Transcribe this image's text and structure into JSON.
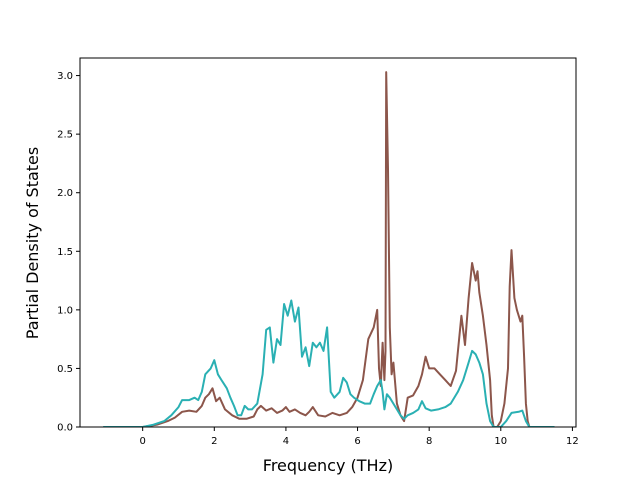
{
  "chart_data": {
    "type": "line",
    "title": "",
    "xlabel": "Frequency (THz)",
    "ylabel": "Partial Density of States",
    "xlim": [
      -1.75,
      12.1
    ],
    "ylim": [
      0,
      3.15
    ],
    "xticks": [
      0,
      2,
      4,
      6,
      8,
      10,
      12
    ],
    "xtick_labels": [
      "0",
      "2",
      "4",
      "6",
      "8",
      "10",
      "12"
    ],
    "yticks": [
      0.0,
      0.5,
      1.0,
      1.5,
      2.0,
      2.5,
      3.0
    ],
    "ytick_labels": [
      "0.0",
      "0.5",
      "1.0",
      "1.5",
      "2.0",
      "2.5",
      "3.0"
    ],
    "grid": false,
    "legend": "none",
    "series": [
      {
        "color": "#8c564b",
        "points": [
          [
            -1.1,
            0
          ],
          [
            0,
            0
          ],
          [
            0.4,
            0.02
          ],
          [
            0.7,
            0.05
          ],
          [
            0.9,
            0.08
          ],
          [
            1.1,
            0.13
          ],
          [
            1.3,
            0.14
          ],
          [
            1.5,
            0.13
          ],
          [
            1.65,
            0.18
          ],
          [
            1.75,
            0.25
          ],
          [
            1.85,
            0.28
          ],
          [
            1.95,
            0.33
          ],
          [
            2.05,
            0.22
          ],
          [
            2.15,
            0.25
          ],
          [
            2.3,
            0.15
          ],
          [
            2.5,
            0.1
          ],
          [
            2.7,
            0.07
          ],
          [
            2.9,
            0.07
          ],
          [
            3.1,
            0.09
          ],
          [
            3.2,
            0.15
          ],
          [
            3.3,
            0.18
          ],
          [
            3.45,
            0.14
          ],
          [
            3.6,
            0.16
          ],
          [
            3.75,
            0.12
          ],
          [
            3.9,
            0.14
          ],
          [
            4.0,
            0.17
          ],
          [
            4.1,
            0.13
          ],
          [
            4.25,
            0.15
          ],
          [
            4.4,
            0.12
          ],
          [
            4.55,
            0.1
          ],
          [
            4.65,
            0.13
          ],
          [
            4.75,
            0.17
          ],
          [
            4.9,
            0.1
          ],
          [
            5.1,
            0.09
          ],
          [
            5.3,
            0.12
          ],
          [
            5.5,
            0.1
          ],
          [
            5.7,
            0.12
          ],
          [
            5.85,
            0.17
          ],
          [
            6.0,
            0.25
          ],
          [
            6.15,
            0.4
          ],
          [
            6.3,
            0.75
          ],
          [
            6.45,
            0.85
          ],
          [
            6.55,
            1.0
          ],
          [
            6.6,
            0.5
          ],
          [
            6.65,
            0.35
          ],
          [
            6.7,
            0.72
          ],
          [
            6.75,
            0.4
          ],
          [
            6.78,
            0.65
          ],
          [
            6.8,
            3.03
          ],
          [
            6.85,
            2.2
          ],
          [
            6.9,
            0.85
          ],
          [
            6.95,
            0.45
          ],
          [
            7.0,
            0.55
          ],
          [
            7.1,
            0.2
          ],
          [
            7.2,
            0.1
          ],
          [
            7.3,
            0.05
          ],
          [
            7.4,
            0.25
          ],
          [
            7.55,
            0.27
          ],
          [
            7.7,
            0.35
          ],
          [
            7.8,
            0.45
          ],
          [
            7.9,
            0.6
          ],
          [
            8.0,
            0.5
          ],
          [
            8.15,
            0.5
          ],
          [
            8.3,
            0.45
          ],
          [
            8.45,
            0.4
          ],
          [
            8.6,
            0.35
          ],
          [
            8.75,
            0.48
          ],
          [
            8.9,
            0.95
          ],
          [
            9.0,
            0.7
          ],
          [
            9.1,
            1.1
          ],
          [
            9.2,
            1.4
          ],
          [
            9.3,
            1.25
          ],
          [
            9.35,
            1.33
          ],
          [
            9.4,
            1.15
          ],
          [
            9.5,
            0.95
          ],
          [
            9.6,
            0.7
          ],
          [
            9.7,
            0.4
          ],
          [
            9.75,
            0.1
          ],
          [
            9.8,
            0
          ],
          [
            9.9,
            0
          ],
          [
            10.0,
            0.05
          ],
          [
            10.1,
            0.2
          ],
          [
            10.2,
            0.5
          ],
          [
            10.25,
            1.2
          ],
          [
            10.3,
            1.51
          ],
          [
            10.38,
            1.1
          ],
          [
            10.45,
            1.0
          ],
          [
            10.55,
            0.9
          ],
          [
            10.6,
            0.95
          ],
          [
            10.65,
            0.6
          ],
          [
            10.7,
            0.2
          ],
          [
            10.75,
            0.05
          ],
          [
            10.8,
            0
          ],
          [
            11.5,
            0
          ]
        ]
      },
      {
        "color": "#2ab0b3",
        "points": [
          [
            -1.1,
            0
          ],
          [
            0,
            0
          ],
          [
            0.3,
            0.02
          ],
          [
            0.6,
            0.05
          ],
          [
            0.8,
            0.1
          ],
          [
            1.0,
            0.17
          ],
          [
            1.1,
            0.23
          ],
          [
            1.3,
            0.23
          ],
          [
            1.45,
            0.25
          ],
          [
            1.55,
            0.23
          ],
          [
            1.65,
            0.3
          ],
          [
            1.75,
            0.45
          ],
          [
            1.9,
            0.5
          ],
          [
            2.0,
            0.57
          ],
          [
            2.1,
            0.45
          ],
          [
            2.2,
            0.4
          ],
          [
            2.35,
            0.33
          ],
          [
            2.45,
            0.25
          ],
          [
            2.55,
            0.18
          ],
          [
            2.65,
            0.1
          ],
          [
            2.75,
            0.1
          ],
          [
            2.85,
            0.18
          ],
          [
            2.95,
            0.15
          ],
          [
            3.05,
            0.15
          ],
          [
            3.2,
            0.2
          ],
          [
            3.35,
            0.45
          ],
          [
            3.45,
            0.83
          ],
          [
            3.55,
            0.85
          ],
          [
            3.65,
            0.55
          ],
          [
            3.75,
            0.75
          ],
          [
            3.85,
            0.7
          ],
          [
            3.95,
            1.05
          ],
          [
            4.05,
            0.95
          ],
          [
            4.15,
            1.08
          ],
          [
            4.25,
            0.9
          ],
          [
            4.35,
            1.02
          ],
          [
            4.45,
            0.6
          ],
          [
            4.55,
            0.68
          ],
          [
            4.65,
            0.52
          ],
          [
            4.75,
            0.72
          ],
          [
            4.85,
            0.68
          ],
          [
            4.95,
            0.72
          ],
          [
            5.05,
            0.65
          ],
          [
            5.15,
            0.85
          ],
          [
            5.25,
            0.3
          ],
          [
            5.35,
            0.25
          ],
          [
            5.5,
            0.3
          ],
          [
            5.6,
            0.42
          ],
          [
            5.7,
            0.38
          ],
          [
            5.8,
            0.28
          ],
          [
            5.9,
            0.25
          ],
          [
            6.05,
            0.22
          ],
          [
            6.2,
            0.2
          ],
          [
            6.35,
            0.2
          ],
          [
            6.45,
            0.28
          ],
          [
            6.55,
            0.35
          ],
          [
            6.65,
            0.4
          ],
          [
            6.7,
            0.3
          ],
          [
            6.75,
            0.15
          ],
          [
            6.82,
            0.28
          ],
          [
            6.9,
            0.25
          ],
          [
            7.0,
            0.2
          ],
          [
            7.1,
            0.15
          ],
          [
            7.2,
            0.1
          ],
          [
            7.3,
            0.07
          ],
          [
            7.4,
            0.1
          ],
          [
            7.55,
            0.12
          ],
          [
            7.7,
            0.15
          ],
          [
            7.8,
            0.22
          ],
          [
            7.9,
            0.16
          ],
          [
            8.05,
            0.14
          ],
          [
            8.25,
            0.15
          ],
          [
            8.45,
            0.17
          ],
          [
            8.6,
            0.2
          ],
          [
            8.8,
            0.3
          ],
          [
            8.95,
            0.4
          ],
          [
            9.1,
            0.55
          ],
          [
            9.2,
            0.65
          ],
          [
            9.3,
            0.62
          ],
          [
            9.4,
            0.55
          ],
          [
            9.5,
            0.45
          ],
          [
            9.6,
            0.2
          ],
          [
            9.7,
            0.05
          ],
          [
            9.8,
            0
          ],
          [
            10.0,
            0
          ],
          [
            10.15,
            0.05
          ],
          [
            10.3,
            0.12
          ],
          [
            10.5,
            0.13
          ],
          [
            10.6,
            0.14
          ],
          [
            10.7,
            0.05
          ],
          [
            10.8,
            0
          ],
          [
            11.5,
            0
          ]
        ]
      }
    ]
  }
}
